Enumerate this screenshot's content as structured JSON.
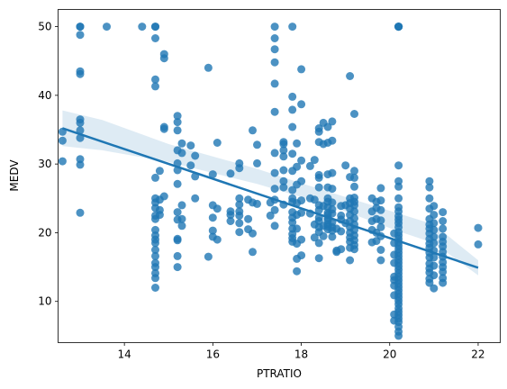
{
  "chart_data": {
    "type": "scatter",
    "title": "",
    "xlabel": "PTRATIO",
    "ylabel": "MEDV",
    "xlim": [
      12.5,
      22.5
    ],
    "ylim": [
      4,
      52.5
    ],
    "xticks": [
      14,
      16,
      18,
      20,
      22
    ],
    "yticks": [
      10,
      20,
      30,
      40,
      50
    ],
    "grid": false,
    "legend": "none",
    "colors": {
      "points": "#1f77b4",
      "line": "#1f77b4",
      "band": "#1f77b4"
    },
    "regression": {
      "x": [
        12.6,
        22.0
      ],
      "y": [
        35.2,
        14.9
      ]
    },
    "confidence_band": {
      "x": [
        12.6,
        13.5,
        15.0,
        17.0,
        18.0,
        19.0,
        20.2,
        21.0,
        22.0
      ],
      "upper": [
        37.8,
        36.4,
        32.9,
        29.3,
        27.2,
        25.2,
        22.8,
        21.2,
        16.0
      ],
      "lower": [
        32.6,
        32.0,
        30.3,
        27.1,
        25.2,
        23.1,
        20.2,
        18.5,
        13.8
      ]
    },
    "points": [
      [
        12.6,
        34.7
      ],
      [
        12.6,
        33.4
      ],
      [
        12.6,
        30.4
      ],
      [
        13.0,
        50.0
      ],
      [
        13.0,
        50.0
      ],
      [
        13.0,
        48.8
      ],
      [
        13.0,
        43.5
      ],
      [
        13.0,
        43.1
      ],
      [
        13.0,
        36.5
      ],
      [
        13.0,
        36.0
      ],
      [
        13.0,
        34.9
      ],
      [
        13.0,
        33.8
      ],
      [
        13.0,
        30.7
      ],
      [
        13.0,
        29.9
      ],
      [
        13.0,
        22.9
      ],
      [
        13.6,
        50.0
      ],
      [
        14.4,
        50.0
      ],
      [
        14.7,
        50.0
      ],
      [
        14.7,
        50.0
      ],
      [
        14.7,
        48.3
      ],
      [
        14.7,
        42.3
      ],
      [
        14.7,
        41.3
      ],
      [
        14.7,
        28.0
      ],
      [
        14.7,
        25.0
      ],
      [
        14.7,
        24.4
      ],
      [
        14.7,
        23.6
      ],
      [
        14.7,
        22.5
      ],
      [
        14.7,
        22.0
      ],
      [
        14.7,
        20.4
      ],
      [
        14.7,
        19.6
      ],
      [
        14.7,
        19.0
      ],
      [
        14.7,
        18.5
      ],
      [
        14.7,
        17.5
      ],
      [
        14.7,
        16.6
      ],
      [
        14.7,
        15.6
      ],
      [
        14.7,
        15.0
      ],
      [
        14.7,
        14.1
      ],
      [
        14.7,
        13.4
      ],
      [
        14.7,
        12.0
      ],
      [
        14.8,
        29.0
      ],
      [
        14.8,
        24.8
      ],
      [
        14.8,
        23.3
      ],
      [
        14.8,
        22.6
      ],
      [
        14.9,
        46.0
      ],
      [
        14.9,
        45.4
      ],
      [
        14.9,
        35.4
      ],
      [
        14.9,
        35.1
      ],
      [
        14.9,
        25.3
      ],
      [
        15.2,
        37.0
      ],
      [
        15.2,
        36.1
      ],
      [
        15.2,
        34.9
      ],
      [
        15.2,
        32.0
      ],
      [
        15.2,
        30.1
      ],
      [
        15.2,
        29.1
      ],
      [
        15.2,
        27.1
      ],
      [
        15.2,
        23.0
      ],
      [
        15.2,
        21.9
      ],
      [
        15.2,
        19.1
      ],
      [
        15.2,
        18.9
      ],
      [
        15.2,
        16.6
      ],
      [
        15.2,
        15.0
      ],
      [
        15.3,
        33.0
      ],
      [
        15.3,
        31.6
      ],
      [
        15.3,
        24.0
      ],
      [
        15.3,
        22.0
      ],
      [
        15.3,
        21.0
      ],
      [
        15.5,
        32.7
      ],
      [
        15.5,
        29.8
      ],
      [
        15.6,
        31.2
      ],
      [
        15.6,
        28.2
      ],
      [
        15.6,
        25.0
      ],
      [
        15.9,
        44.0
      ],
      [
        15.9,
        16.5
      ],
      [
        16.0,
        28.5
      ],
      [
        16.0,
        24.0
      ],
      [
        16.0,
        22.2
      ],
      [
        16.0,
        20.3
      ],
      [
        16.0,
        19.4
      ],
      [
        16.1,
        33.1
      ],
      [
        16.1,
        23.5
      ],
      [
        16.1,
        19.0
      ],
      [
        16.4,
        28.6
      ],
      [
        16.4,
        23.1
      ],
      [
        16.4,
        22.6
      ],
      [
        16.4,
        21.7
      ],
      [
        16.6,
        30.1
      ],
      [
        16.6,
        29.4
      ],
      [
        16.6,
        25.0
      ],
      [
        16.6,
        24.1
      ],
      [
        16.6,
        23.1
      ],
      [
        16.6,
        22.5
      ],
      [
        16.6,
        21.4
      ],
      [
        16.6,
        20.1
      ],
      [
        16.8,
        24.8
      ],
      [
        16.8,
        22.0
      ],
      [
        16.8,
        20.5
      ],
      [
        16.9,
        34.9
      ],
      [
        16.9,
        24.4
      ],
      [
        16.9,
        17.2
      ],
      [
        16.9,
        19.9
      ],
      [
        17.0,
        32.8
      ],
      [
        17.0,
        30.1
      ],
      [
        17.0,
        24.2
      ],
      [
        17.3,
        24.4
      ],
      [
        17.3,
        22.5
      ],
      [
        17.4,
        50.0
      ],
      [
        17.4,
        48.3
      ],
      [
        17.4,
        46.7
      ],
      [
        17.4,
        44.8
      ],
      [
        17.4,
        41.7
      ],
      [
        17.4,
        37.6
      ],
      [
        17.4,
        31.6
      ],
      [
        17.4,
        28.7
      ],
      [
        17.4,
        26.4
      ],
      [
        17.4,
        24.8
      ],
      [
        17.4,
        23.3
      ],
      [
        17.4,
        21.0
      ],
      [
        17.6,
        33.2
      ],
      [
        17.6,
        32.9
      ],
      [
        17.6,
        32.0
      ],
      [
        17.6,
        31.1
      ],
      [
        17.6,
        29.1
      ],
      [
        17.6,
        27.5
      ],
      [
        17.6,
        26.6
      ],
      [
        17.6,
        24.1
      ],
      [
        17.8,
        50.0
      ],
      [
        17.8,
        39.8
      ],
      [
        17.8,
        37.9
      ],
      [
        17.8,
        35.4
      ],
      [
        17.8,
        31.5
      ],
      [
        17.8,
        29.0
      ],
      [
        17.8,
        26.2
      ],
      [
        17.8,
        25.0
      ],
      [
        17.8,
        24.5
      ],
      [
        17.8,
        23.0
      ],
      [
        17.8,
        22.2
      ],
      [
        17.8,
        21.5
      ],
      [
        17.8,
        20.6
      ],
      [
        17.8,
        19.8
      ],
      [
        17.8,
        19.2
      ],
      [
        17.8,
        18.7
      ],
      [
        17.9,
        33.0
      ],
      [
        17.9,
        29.6
      ],
      [
        17.9,
        27.0
      ],
      [
        17.9,
        24.3
      ],
      [
        17.9,
        22.6
      ],
      [
        17.9,
        20.6
      ],
      [
        17.9,
        18.4
      ],
      [
        17.9,
        16.2
      ],
      [
        17.9,
        14.4
      ],
      [
        18.0,
        43.8
      ],
      [
        18.0,
        38.7
      ],
      [
        18.0,
        30.5
      ],
      [
        18.0,
        27.5
      ],
      [
        18.0,
        24.7
      ],
      [
        18.0,
        22.9
      ],
      [
        18.0,
        19.0
      ],
      [
        18.0,
        16.7
      ],
      [
        18.2,
        29.7
      ],
      [
        18.2,
        25.0
      ],
      [
        18.2,
        22.8
      ],
      [
        18.3,
        30.6
      ],
      [
        18.3,
        24.8
      ],
      [
        18.3,
        21.2
      ],
      [
        18.3,
        19.3
      ],
      [
        18.4,
        35.2
      ],
      [
        18.4,
        34.7
      ],
      [
        18.4,
        33.2
      ],
      [
        18.4,
        28.4
      ],
      [
        18.4,
        28.0
      ],
      [
        18.4,
        26.6
      ],
      [
        18.4,
        24.0
      ],
      [
        18.4,
        23.3
      ],
      [
        18.4,
        22.2
      ],
      [
        18.4,
        21.7
      ],
      [
        18.4,
        20.8
      ],
      [
        18.4,
        20.1
      ],
      [
        18.4,
        18.5
      ],
      [
        18.4,
        16.3
      ],
      [
        18.5,
        36.0
      ],
      [
        18.5,
        32.9
      ],
      [
        18.5,
        23.9
      ],
      [
        18.5,
        21.0
      ],
      [
        18.5,
        19.5
      ],
      [
        18.6,
        35.4
      ],
      [
        18.6,
        33.1
      ],
      [
        18.6,
        28.5
      ],
      [
        18.6,
        26.6
      ],
      [
        18.6,
        25.0
      ],
      [
        18.6,
        24.5
      ],
      [
        18.6,
        23.7
      ],
      [
        18.6,
        22.9
      ],
      [
        18.6,
        22.6
      ],
      [
        18.6,
        22.1
      ],
      [
        18.6,
        21.8
      ],
      [
        18.6,
        21.2
      ],
      [
        18.6,
        20.9
      ],
      [
        18.6,
        20.5
      ],
      [
        18.7,
        36.2
      ],
      [
        18.7,
        33.4
      ],
      [
        18.7,
        28.7
      ],
      [
        18.7,
        26.4
      ],
      [
        18.7,
        24.4
      ],
      [
        18.7,
        23.4
      ],
      [
        18.7,
        22.8
      ],
      [
        18.7,
        21.5
      ],
      [
        18.7,
        20.8
      ],
      [
        18.7,
        20.3
      ],
      [
        18.7,
        19.4
      ],
      [
        18.8,
        20.6
      ],
      [
        18.8,
        17.4
      ],
      [
        18.8,
        17.2
      ],
      [
        18.9,
        23.9
      ],
      [
        18.9,
        22.5
      ],
      [
        18.9,
        21.9
      ],
      [
        18.9,
        20.2
      ],
      [
        18.9,
        17.6
      ],
      [
        19.0,
        29.8
      ],
      [
        19.0,
        24.0
      ],
      [
        19.0,
        21.4
      ],
      [
        19.1,
        42.8
      ],
      [
        19.1,
        28.1
      ],
      [
        19.1,
        25.0
      ],
      [
        19.1,
        24.3
      ],
      [
        19.1,
        23.5
      ],
      [
        19.1,
        22.6
      ],
      [
        19.1,
        21.7
      ],
      [
        19.1,
        20.8
      ],
      [
        19.1,
        20.0
      ],
      [
        19.1,
        19.3
      ],
      [
        19.1,
        18.7
      ],
      [
        19.1,
        17.8
      ],
      [
        19.1,
        16.0
      ],
      [
        19.2,
        37.3
      ],
      [
        19.2,
        29.0
      ],
      [
        19.2,
        28.0
      ],
      [
        19.2,
        26.7
      ],
      [
        19.2,
        25.1
      ],
      [
        19.2,
        24.5
      ],
      [
        19.2,
        24.0
      ],
      [
        19.2,
        23.1
      ],
      [
        19.2,
        22.1
      ],
      [
        19.2,
        21.2
      ],
      [
        19.2,
        20.4
      ],
      [
        19.2,
        19.6
      ],
      [
        19.2,
        18.9
      ],
      [
        19.2,
        18.2
      ],
      [
        19.2,
        17.6
      ],
      [
        19.6,
        25.0
      ],
      [
        19.6,
        23.1
      ],
      [
        19.6,
        21.7
      ],
      [
        19.6,
        20.4
      ],
      [
        19.6,
        18.6
      ],
      [
        19.7,
        24.5
      ],
      [
        19.7,
        23.6
      ],
      [
        19.7,
        22.0
      ],
      [
        19.7,
        20.0
      ],
      [
        19.7,
        18.8
      ],
      [
        19.8,
        26.5
      ],
      [
        19.8,
        24.7
      ],
      [
        19.8,
        23.3
      ],
      [
        19.8,
        21.8
      ],
      [
        19.8,
        20.8
      ],
      [
        19.8,
        19.5
      ],
      [
        19.8,
        17.5
      ],
      [
        19.8,
        16.0
      ],
      [
        20.1,
        19.9
      ],
      [
        20.1,
        18.5
      ],
      [
        20.1,
        16.8
      ],
      [
        20.1,
        15.6
      ],
      [
        20.1,
        13.6
      ],
      [
        20.1,
        13.1
      ],
      [
        20.1,
        12.3
      ],
      [
        20.1,
        10.9
      ],
      [
        20.1,
        8.1
      ],
      [
        20.1,
        7.2
      ],
      [
        20.2,
        50.0
      ],
      [
        20.2,
        50.0
      ],
      [
        20.2,
        50.0
      ],
      [
        20.2,
        50.0
      ],
      [
        20.2,
        29.8
      ],
      [
        20.2,
        27.5
      ],
      [
        20.2,
        26.7
      ],
      [
        20.2,
        25.0
      ],
      [
        20.2,
        23.7
      ],
      [
        20.2,
        23.1
      ],
      [
        20.2,
        22.4
      ],
      [
        20.2,
        21.9
      ],
      [
        20.2,
        21.4
      ],
      [
        20.2,
        20.8
      ],
      [
        20.2,
        20.1
      ],
      [
        20.2,
        19.6
      ],
      [
        20.2,
        19.1
      ],
      [
        20.2,
        18.6
      ],
      [
        20.2,
        18.1
      ],
      [
        20.2,
        17.6
      ],
      [
        20.2,
        17.1
      ],
      [
        20.2,
        16.6
      ],
      [
        20.2,
        16.1
      ],
      [
        20.2,
        15.6
      ],
      [
        20.2,
        15.1
      ],
      [
        20.2,
        14.6
      ],
      [
        20.2,
        14.1
      ],
      [
        20.2,
        13.6
      ],
      [
        20.2,
        13.1
      ],
      [
        20.2,
        12.6
      ],
      [
        20.2,
        12.1
      ],
      [
        20.2,
        11.6
      ],
      [
        20.2,
        11.1
      ],
      [
        20.2,
        10.6
      ],
      [
        20.2,
        10.1
      ],
      [
        20.2,
        9.6
      ],
      [
        20.2,
        9.0
      ],
      [
        20.2,
        8.5
      ],
      [
        20.2,
        8.0
      ],
      [
        20.2,
        7.5
      ],
      [
        20.2,
        7.0
      ],
      [
        20.2,
        6.3
      ],
      [
        20.2,
        5.6
      ],
      [
        20.2,
        5.0
      ],
      [
        20.9,
        27.5
      ],
      [
        20.9,
        26.6
      ],
      [
        20.9,
        25.0
      ],
      [
        20.9,
        23.5
      ],
      [
        20.9,
        22.0
      ],
      [
        20.9,
        21.2
      ],
      [
        20.9,
        20.6
      ],
      [
        20.9,
        19.9
      ],
      [
        20.9,
        19.1
      ],
      [
        20.9,
        18.4
      ],
      [
        20.9,
        17.8
      ],
      [
        20.9,
        17.1
      ],
      [
        20.9,
        16.4
      ],
      [
        20.9,
        15.5
      ],
      [
        20.9,
        14.8
      ],
      [
        20.9,
        14.2
      ],
      [
        20.9,
        13.3
      ],
      [
        20.9,
        12.7
      ],
      [
        21.0,
        23.9
      ],
      [
        21.0,
        22.6
      ],
      [
        21.0,
        21.4
      ],
      [
        21.0,
        20.4
      ],
      [
        21.0,
        19.4
      ],
      [
        21.0,
        18.5
      ],
      [
        21.0,
        17.4
      ],
      [
        21.0,
        16.4
      ],
      [
        21.0,
        15.2
      ],
      [
        21.0,
        13.8
      ],
      [
        21.0,
        11.9
      ],
      [
        21.2,
        23.0
      ],
      [
        21.2,
        21.7
      ],
      [
        21.2,
        20.6
      ],
      [
        21.2,
        19.4
      ],
      [
        21.2,
        18.7
      ],
      [
        21.2,
        18.0
      ],
      [
        21.2,
        17.2
      ],
      [
        21.2,
        16.5
      ],
      [
        21.2,
        15.7
      ],
      [
        21.2,
        15.0
      ],
      [
        21.2,
        14.3
      ],
      [
        21.2,
        13.4
      ],
      [
        21.2,
        12.7
      ],
      [
        22.0,
        20.7
      ],
      [
        22.0,
        18.3
      ]
    ]
  }
}
